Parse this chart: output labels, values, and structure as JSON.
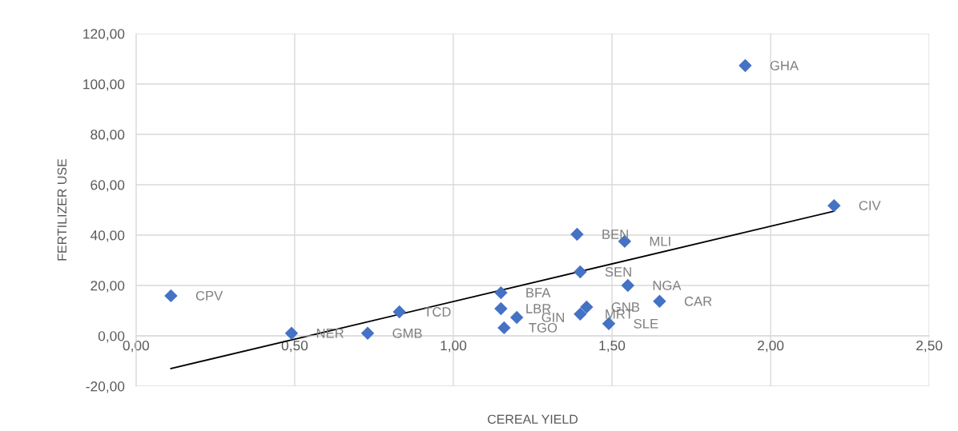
{
  "chart_data": {
    "type": "scatter",
    "xlabel": "CEREAL YIELD",
    "ylabel": "FERTILIZER USE",
    "grid": true,
    "legend": false,
    "xlim": [
      0,
      2.5
    ],
    "ylim": [
      -20,
      120
    ],
    "xticks": [
      {
        "value": 0,
        "label": "0,00"
      },
      {
        "value": 0.5,
        "label": "0,50"
      },
      {
        "value": 1,
        "label": "1,00"
      },
      {
        "value": 1.5,
        "label": "1,50"
      },
      {
        "value": 2,
        "label": "2,00"
      },
      {
        "value": 2.5,
        "label": "2,50"
      }
    ],
    "yticks": [
      {
        "value": -20,
        "label": "-20,00"
      },
      {
        "value": 0,
        "label": "0,00"
      },
      {
        "value": 20,
        "label": "20,00"
      },
      {
        "value": 40,
        "label": "40,00"
      },
      {
        "value": 60,
        "label": "60,00"
      },
      {
        "value": 80,
        "label": "80,00"
      },
      {
        "value": 100,
        "label": "100,00"
      },
      {
        "value": 120,
        "label": "120,00"
      }
    ],
    "series": [
      {
        "marker": "diamond",
        "color": "#4472c4",
        "x": [
          1.92,
          2.2,
          1.39,
          1.54,
          1.4,
          1.55,
          0.11,
          1.15,
          1.65,
          0.83,
          1.15,
          1.42,
          1.4,
          1.2,
          1.49,
          1.16,
          0.49,
          0.73
        ],
        "values": [
          107.3,
          51.7,
          40.3,
          37.5,
          25.4,
          20.0,
          15.9,
          17.1,
          13.7,
          9.5,
          10.8,
          11.4,
          8.6,
          7.3,
          4.8,
          3.2,
          1.0,
          1.0
        ]
      },
      {
        "type": "line",
        "marker": "none",
        "color": "#000000",
        "x": [
          0.11,
          2.2
        ],
        "values": [
          -13.0,
          49.5
        ]
      }
    ],
    "annotations": [
      {
        "text": "GHA",
        "x": 1.92,
        "y": 107.3
      },
      {
        "text": "CIV",
        "x": 2.2,
        "y": 51.7
      },
      {
        "text": "BEN",
        "x": 1.39,
        "y": 40.3
      },
      {
        "text": "MLI",
        "x": 1.54,
        "y": 37.5
      },
      {
        "text": "SEN",
        "x": 1.4,
        "y": 25.4
      },
      {
        "text": "NGA",
        "x": 1.55,
        "y": 20.0
      },
      {
        "text": "CPV",
        "x": 0.11,
        "y": 15.9
      },
      {
        "text": "BFA",
        "x": 1.15,
        "y": 17.1
      },
      {
        "text": "CAR",
        "x": 1.65,
        "y": 13.7
      },
      {
        "text": "TCD",
        "x": 0.83,
        "y": 9.5
      },
      {
        "text": "LBR",
        "x": 1.15,
        "y": 10.8
      },
      {
        "text": "GNB",
        "x": 1.42,
        "y": 11.4
      },
      {
        "text": "MRT",
        "x": 1.4,
        "y": 8.6
      },
      {
        "text": "GIN",
        "x": 1.2,
        "y": 7.3
      },
      {
        "text": "SLE",
        "x": 1.49,
        "y": 4.8
      },
      {
        "text": "TGO",
        "x": 1.16,
        "y": 3.2
      },
      {
        "text": "NER",
        "x": 0.49,
        "y": 1.0
      },
      {
        "text": "GMB",
        "x": 0.73,
        "y": 1.0
      }
    ]
  }
}
